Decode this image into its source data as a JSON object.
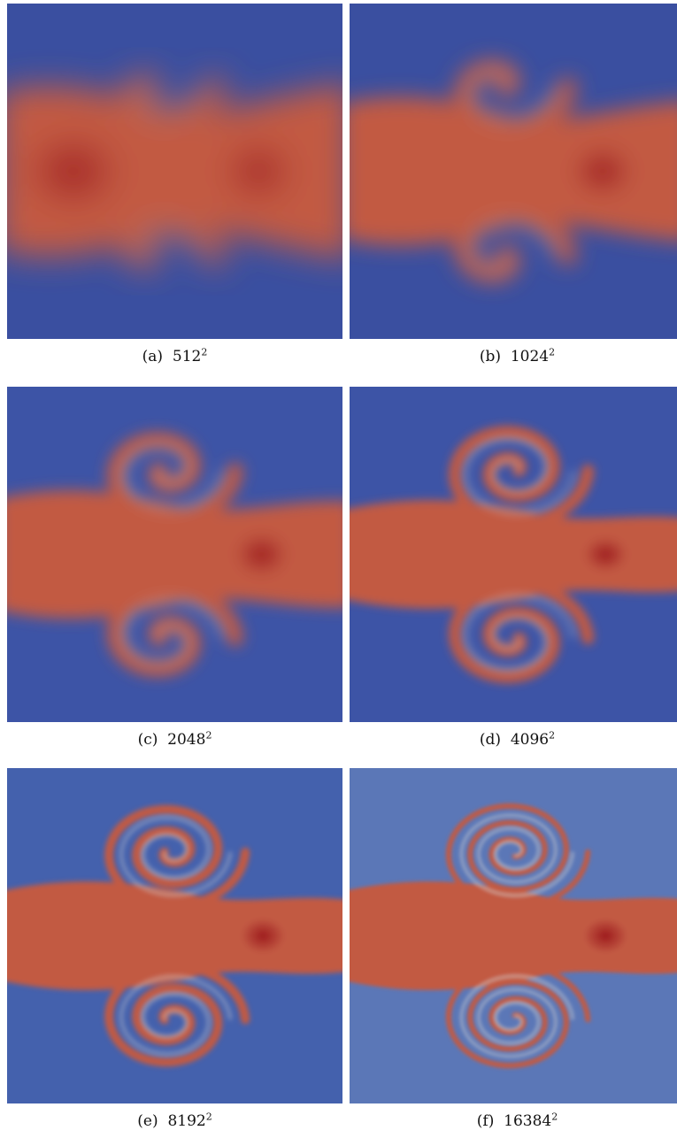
{
  "figure": {
    "panels": [
      {
        "label": "(a)",
        "resolution": "512",
        "exponent": "2",
        "spiral_turns": 0.6,
        "blur": 18,
        "background": "#3a4fa0"
      },
      {
        "label": "(b)",
        "resolution": "1024",
        "exponent": "2",
        "spiral_turns": 1.0,
        "blur": 12,
        "background": "#3a4fa0"
      },
      {
        "label": "(c)",
        "resolution": "2048",
        "exponent": "2",
        "spiral_turns": 1.5,
        "blur": 8,
        "background": "#3d54a6"
      },
      {
        "label": "(d)",
        "resolution": "4096",
        "exponent": "2",
        "spiral_turns": 2.0,
        "blur": 5,
        "background": "#3d54a6"
      },
      {
        "label": "(e)",
        "resolution": "8192",
        "exponent": "2",
        "spiral_turns": 2.5,
        "blur": 3,
        "background": "#4461ad"
      },
      {
        "label": "(f)",
        "resolution": "16384",
        "exponent": "2",
        "spiral_turns": 3.2,
        "blur": 2,
        "background": "#5b77b7"
      }
    ],
    "colors": {
      "cold": "#3b4ea1",
      "warm": "#c25a43",
      "hot": "#9e1b1e",
      "mid": "#d8d6d0"
    }
  }
}
